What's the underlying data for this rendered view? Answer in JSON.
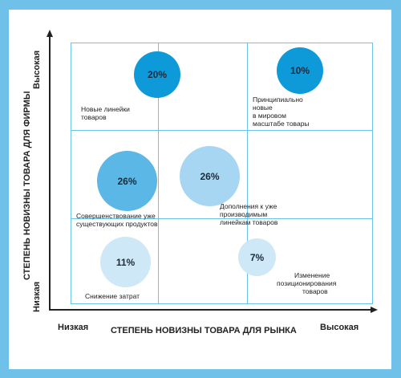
{
  "axes": {
    "y_title": "СТЕПЕНЬ НОВИЗНЫ ТОВАРА ДЛЯ ФИРМЫ",
    "y_high": "Высокая",
    "y_low": "Низкая",
    "x_title": "СТЕПЕНЬ НОВИЗНЫ ТОВАРА ДЛЯ РЫНКА",
    "x_low": "Низкая",
    "x_high": "Высокая"
  },
  "bubbles": [
    {
      "id": "new-lines",
      "value": "20%",
      "label_lines": [
        "Новые линейки",
        "товаров"
      ],
      "color": "#0e9ad8"
    },
    {
      "id": "world-new",
      "value": "10%",
      "label_lines": [
        "Принципиально",
        "новые",
        "в мировом",
        "масштабе товары"
      ],
      "color": "#0e9ad8"
    },
    {
      "id": "improvement",
      "value": "26%",
      "label_lines": [
        "Совершенствование уже",
        "существующих продуктов"
      ],
      "color": "#5bb7e6"
    },
    {
      "id": "additions",
      "value": "26%",
      "label_lines": [
        "Дополнения к уже",
        "производимым",
        "линейкам товаров"
      ],
      "color": "#a6d6f1"
    },
    {
      "id": "cost-reduction",
      "value": "11%",
      "label_lines": [
        "Снижение затрат"
      ],
      "color": "#cfe8f7"
    },
    {
      "id": "repositioning",
      "value": "7%",
      "label_lines": [
        "Изменение",
        "позиционирования",
        "товаров"
      ],
      "color": "#cfe8f7"
    }
  ]
}
